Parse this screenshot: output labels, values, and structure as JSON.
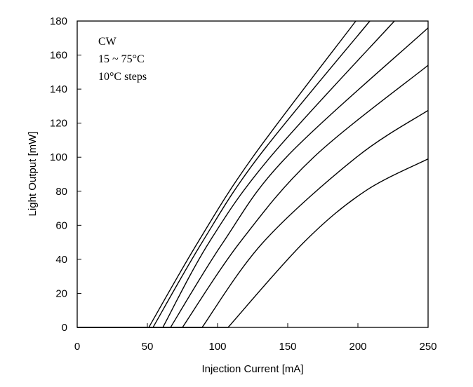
{
  "chart_data": {
    "type": "line",
    "title": "",
    "xlabel": "Injection Current [mA]",
    "ylabel": "Light Output [mW]",
    "xlim": [
      0,
      250
    ],
    "ylim": [
      0,
      180
    ],
    "xticks": [
      0,
      50,
      100,
      150,
      200,
      250
    ],
    "yticks": [
      0,
      20,
      40,
      60,
      80,
      100,
      120,
      140,
      160,
      180
    ],
    "grid": false,
    "legend": "none",
    "annotation": [
      "CW",
      "15 ~ 75°C",
      "10°C steps"
    ],
    "line_color": "#000000",
    "series": [
      {
        "points": [
          [
            0,
            0
          ],
          [
            51,
            0
          ],
          [
            86,
            50
          ],
          [
            125,
            100
          ],
          [
            198.5,
            180
          ]
        ]
      },
      {
        "points": [
          [
            0,
            0
          ],
          [
            54,
            0
          ],
          [
            89,
            50
          ],
          [
            129,
            100
          ],
          [
            208.5,
            180
          ]
        ]
      },
      {
        "points": [
          [
            0,
            0
          ],
          [
            61,
            0
          ],
          [
            94,
            50
          ],
          [
            137.5,
            100
          ],
          [
            226,
            180
          ]
        ]
      },
      {
        "points": [
          [
            0,
            0
          ],
          [
            66.5,
            0
          ],
          [
            104,
            50
          ],
          [
            149,
            100
          ],
          [
            250,
            176
          ]
        ]
      },
      {
        "points": [
          [
            0,
            0
          ],
          [
            75,
            0
          ],
          [
            116,
            50
          ],
          [
            168.5,
            100
          ],
          [
            250,
            154
          ]
        ]
      },
      {
        "points": [
          [
            0,
            0
          ],
          [
            89,
            0
          ],
          [
            132.5,
            50
          ],
          [
            199,
            100
          ],
          [
            250,
            127.5
          ]
        ]
      },
      {
        "points": [
          [
            0,
            0
          ],
          [
            107.5,
            0
          ],
          [
            161.5,
            50
          ],
          [
            205,
            80
          ],
          [
            250,
            99
          ]
        ]
      }
    ]
  }
}
